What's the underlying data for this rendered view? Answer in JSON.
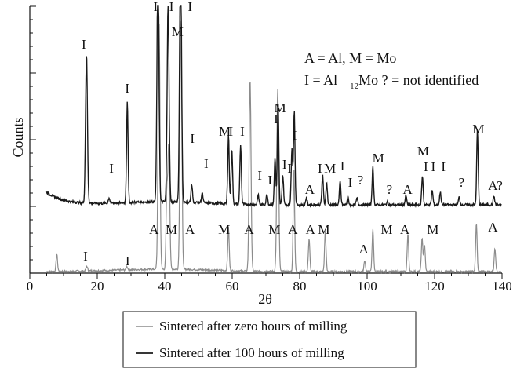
{
  "chart_data": {
    "type": "line",
    "xlabel": "2θ",
    "ylabel": "Counts",
    "xlim": [
      0,
      140
    ],
    "x_ticks": [
      "0",
      "20",
      "40",
      "60",
      "80",
      "100",
      "120",
      "140"
    ],
    "grid": false,
    "legend_position": "bottom",
    "key": {
      "line1": "A = Al,   M = Mo",
      "line2_main": "I = Al",
      "line2_sub": "12",
      "line2_rest": "Mo ? = not identified"
    },
    "series": [
      {
        "name": "Sintered after zero hours of milling",
        "color": "#8c8c8c",
        "baseline": 2,
        "peaks": [
          [
            8.0,
            22
          ],
          [
            16.9,
            6
          ],
          [
            28.8,
            4
          ],
          [
            38.3,
            320
          ],
          [
            40.6,
            90
          ],
          [
            41.2,
            160
          ],
          [
            44.8,
            320
          ],
          [
            58.9,
            55
          ],
          [
            65.3,
            245
          ],
          [
            73.5,
            233
          ],
          [
            78.3,
            130
          ],
          [
            82.8,
            42
          ],
          [
            87.6,
            52
          ],
          [
            99.3,
            14
          ],
          [
            101.7,
            55
          ],
          [
            112.1,
            48
          ],
          [
            116.3,
            42
          ],
          [
            117.0,
            34
          ],
          [
            132.4,
            62
          ],
          [
            137.9,
            30
          ]
        ],
        "labels": [
          {
            "text": "I",
            "x": 16.5,
            "y": 16
          },
          {
            "text": "I",
            "x": 29.0,
            "y": 10
          },
          {
            "text": "A",
            "x": 36.8,
            "y": 50
          },
          {
            "text": "M",
            "x": 42.0,
            "y": 50
          },
          {
            "text": "A",
            "x": 47.5,
            "y": 50
          },
          {
            "text": "M",
            "x": 57.6,
            "y": 50
          },
          {
            "text": "A",
            "x": 65.0,
            "y": 50
          },
          {
            "text": "M",
            "x": 72.5,
            "y": 50
          },
          {
            "text": "A",
            "x": 78.0,
            "y": 50
          },
          {
            "text": "A",
            "x": 83.2,
            "y": 50
          },
          {
            "text": "M",
            "x": 87.2,
            "y": 50
          },
          {
            "text": "A",
            "x": 99.0,
            "y": 25
          },
          {
            "text": "M",
            "x": 105.8,
            "y": 50
          },
          {
            "text": "A",
            "x": 111.2,
            "y": 50
          },
          {
            "text": "M",
            "x": 119.5,
            "y": 50
          },
          {
            "text": "A",
            "x": 137.3,
            "y": 53
          }
        ]
      },
      {
        "name": "Sintered after 100 hours of milling",
        "color": "#1a1a1a",
        "baseline": 87,
        "peaks": [
          [
            16.8,
            190
          ],
          [
            23.5,
            7
          ],
          [
            28.9,
            130
          ],
          [
            38.0,
            340
          ],
          [
            41.0,
            260
          ],
          [
            44.7,
            340
          ],
          [
            48.0,
            22
          ],
          [
            51.1,
            12
          ],
          [
            58.9,
            88
          ],
          [
            59.9,
            70
          ],
          [
            62.5,
            75
          ],
          [
            67.7,
            12
          ],
          [
            70.3,
            14
          ],
          [
            72.7,
            60
          ],
          [
            73.6,
            130
          ],
          [
            75.0,
            38
          ],
          [
            77.7,
            70
          ],
          [
            78.4,
            120
          ],
          [
            82.0,
            9
          ],
          [
            86.8,
            38
          ],
          [
            88.0,
            28
          ],
          [
            92.0,
            30
          ],
          [
            94.3,
            10
          ],
          [
            97.0,
            8
          ],
          [
            101.7,
            48
          ],
          [
            106.0,
            4
          ],
          [
            111.5,
            12
          ],
          [
            116.4,
            36
          ],
          [
            119.3,
            18
          ],
          [
            121.7,
            16
          ],
          [
            127.3,
            10
          ],
          [
            132.7,
            95
          ],
          [
            137.6,
            11
          ]
        ],
        "labels": [
          {
            "text": "I",
            "x": 16.0,
            "y": 286
          },
          {
            "text": "I",
            "x": 28.9,
            "y": 230
          },
          {
            "text": "I",
            "x": 37.3,
            "y": 334
          },
          {
            "text": "I",
            "x": 42.0,
            "y": 334
          },
          {
            "text": "M",
            "x": 43.8,
            "y": 302
          },
          {
            "text": "I",
            "x": 47.5,
            "y": 334
          },
          {
            "text": "I",
            "x": 24.2,
            "y": 128
          },
          {
            "text": "I",
            "x": 48.2,
            "y": 166
          },
          {
            "text": "I",
            "x": 52.3,
            "y": 134
          },
          {
            "text": "M",
            "x": 57.8,
            "y": 175
          },
          {
            "text": "I",
            "x": 59.6,
            "y": 175
          },
          {
            "text": "I",
            "x": 63.0,
            "y": 175
          },
          {
            "text": "I",
            "x": 68.2,
            "y": 119
          },
          {
            "text": "I",
            "x": 71.2,
            "y": 113
          },
          {
            "text": "M",
            "x": 74.2,
            "y": 205
          },
          {
            "text": "I",
            "x": 73.0,
            "y": 191
          },
          {
            "text": "I",
            "x": 75.5,
            "y": 133
          },
          {
            "text": "I",
            "x": 78.5,
            "y": 170
          },
          {
            "text": "I",
            "x": 77.0,
            "y": 128
          },
          {
            "text": "A",
            "x": 83.0,
            "y": 101
          },
          {
            "text": "I",
            "x": 86.0,
            "y": 128
          },
          {
            "text": "M",
            "x": 89.0,
            "y": 128
          },
          {
            "text": "I",
            "x": 92.7,
            "y": 131
          },
          {
            "text": "I",
            "x": 95.0,
            "y": 110
          },
          {
            "text": "?",
            "x": 98.0,
            "y": 113
          },
          {
            "text": "M",
            "x": 103.3,
            "y": 141
          },
          {
            "text": "?",
            "x": 106.6,
            "y": 101
          },
          {
            "text": "A",
            "x": 112.0,
            "y": 101
          },
          {
            "text": "M",
            "x": 116.6,
            "y": 150
          },
          {
            "text": "I",
            "x": 117.4,
            "y": 130
          },
          {
            "text": "I",
            "x": 119.6,
            "y": 130
          },
          {
            "text": "I",
            "x": 122.6,
            "y": 130
          },
          {
            "text": "?",
            "x": 128.0,
            "y": 110
          },
          {
            "text": "M",
            "x": 133.0,
            "y": 178
          },
          {
            "text": "A",
            "x": 137.3,
            "y": 106
          },
          {
            "text": "?",
            "x": 139.3,
            "y": 106
          }
        ]
      }
    ]
  }
}
